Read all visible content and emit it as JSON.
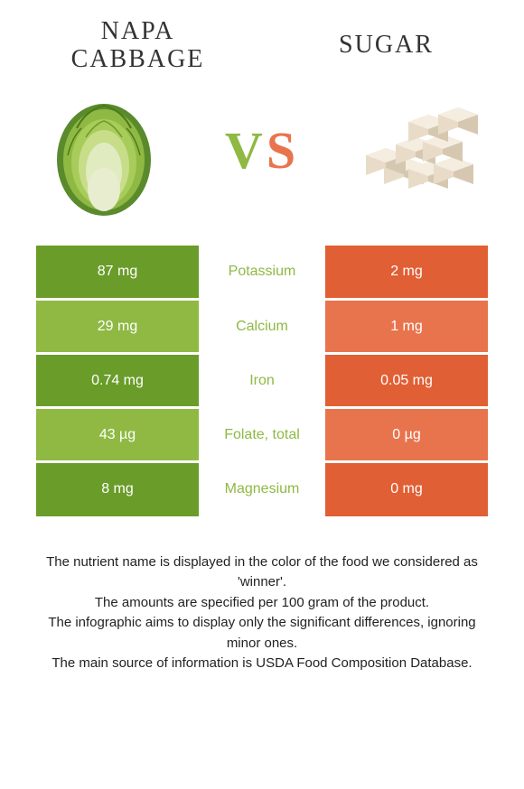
{
  "left_food": {
    "title": "Napa cabbage",
    "color_dark": "#6a9c2a",
    "color_light": "#8fb943"
  },
  "right_food": {
    "title": "Sugar",
    "color_dark": "#e15f34",
    "color_light": "#e8744d"
  },
  "vs": {
    "v_color": "#8fb943",
    "s_color": "#e8744d"
  },
  "rows": [
    {
      "nutrient": "Potassium",
      "left": "87 mg",
      "right": "2 mg",
      "winner": "left"
    },
    {
      "nutrient": "Calcium",
      "left": "29 mg",
      "right": "1 mg",
      "winner": "left"
    },
    {
      "nutrient": "Iron",
      "left": "0.74 mg",
      "right": "0.05 mg",
      "winner": "left"
    },
    {
      "nutrient": "Folate, total",
      "left": "43 µg",
      "right": "0 µg",
      "winner": "left"
    },
    {
      "nutrient": "Magnesium",
      "left": "8 mg",
      "right": "0 mg",
      "winner": "left"
    }
  ],
  "footer_lines": [
    "The nutrient name is displayed in the color of the food we considered as 'winner'.",
    "The amounts are specified per 100 gram of the product.",
    "The infographic aims to display only the significant differences, ignoring minor ones.",
    "The main source of information is USDA Food Composition Database."
  ],
  "cabbage_svg": {
    "leaf_outer": "#5a8a2c",
    "leaf_mid": "#8fb943",
    "leaf_inner": "#c8dd8a",
    "stem": "#e8edd0"
  },
  "sugar_svg": {
    "cube_light": "#f5ede0",
    "cube_mid": "#e8dcc8",
    "cube_dark": "#d6c8b0"
  }
}
